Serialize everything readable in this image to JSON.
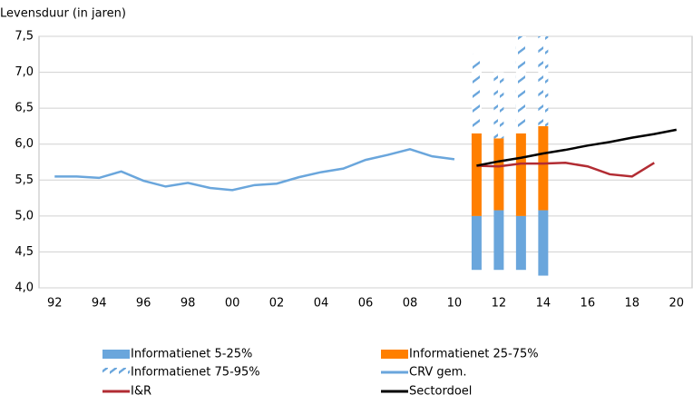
{
  "chart_data": {
    "type": "bar",
    "ylabel": "Levensduur (in jaren)",
    "categories": [
      "92",
      null,
      "94",
      null,
      "96",
      null,
      "98",
      null,
      "00",
      null,
      "02",
      null,
      "04",
      null,
      "06",
      null,
      "08",
      null,
      "10",
      null,
      "12",
      null,
      "14",
      null,
      "16",
      null,
      "18",
      null,
      "20"
    ],
    "ylim": [
      4.0,
      7.5
    ],
    "yticks": [
      {
        "value": 4.0,
        "label": "4,0"
      },
      {
        "value": 4.5,
        "label": "4,5"
      },
      {
        "value": 5.0,
        "label": "5,0"
      },
      {
        "value": 5.5,
        "label": "5,5"
      },
      {
        "value": 6.0,
        "label": "6,0"
      },
      {
        "value": 6.5,
        "label": "6,5"
      },
      {
        "value": 7.0,
        "label": "7,0"
      },
      {
        "value": 7.5,
        "label": "7,5"
      }
    ],
    "grid": true,
    "bar_base": [
      null,
      null,
      null,
      null,
      null,
      null,
      null,
      null,
      null,
      null,
      null,
      null,
      null,
      null,
      null,
      null,
      null,
      null,
      null,
      4.25,
      4.25,
      4.25,
      4.17,
      null,
      null,
      null,
      null,
      null,
      null
    ],
    "series": [
      {
        "name": "Informatienet 5-25%",
        "type": "bar",
        "color": "#6aa6dc",
        "values": [
          null,
          null,
          null,
          null,
          null,
          null,
          null,
          null,
          null,
          null,
          null,
          null,
          null,
          null,
          null,
          null,
          null,
          null,
          null,
          0.75,
          0.83,
          0.75,
          0.91,
          null,
          null,
          null,
          null,
          null,
          null
        ]
      },
      {
        "name": "Informatienet 25-75%",
        "type": "bar",
        "color": "#ff7f00",
        "values": [
          null,
          null,
          null,
          null,
          null,
          null,
          null,
          null,
          null,
          null,
          null,
          null,
          null,
          null,
          null,
          null,
          null,
          null,
          null,
          1.15,
          1.0,
          1.15,
          1.17,
          null,
          null,
          null,
          null,
          null,
          null
        ]
      },
      {
        "name": "Informatienet 75-95%",
        "type": "bar",
        "color": "#9cc8ec",
        "hatch": true,
        "values": [
          null,
          null,
          null,
          null,
          null,
          null,
          null,
          null,
          null,
          null,
          null,
          null,
          null,
          null,
          null,
          null,
          null,
          null,
          null,
          1.1,
          0.92,
          1.35,
          1.25,
          null,
          null,
          null,
          null,
          null,
          null
        ]
      },
      {
        "name": "CRV gem.",
        "type": "line",
        "color": "#6aa6dc",
        "values": [
          5.55,
          5.55,
          5.53,
          5.62,
          5.49,
          5.41,
          5.46,
          5.39,
          5.36,
          5.43,
          5.45,
          5.54,
          5.61,
          5.66,
          5.78,
          5.85,
          5.93,
          5.83,
          5.79,
          null,
          null,
          null,
          null,
          null,
          null,
          null,
          null,
          null,
          null
        ]
      },
      {
        "name": "I&R",
        "type": "line",
        "color": "#b22c33",
        "values": [
          null,
          null,
          null,
          null,
          null,
          null,
          null,
          null,
          null,
          null,
          null,
          null,
          null,
          null,
          null,
          null,
          null,
          null,
          null,
          5.7,
          5.69,
          5.73,
          5.73,
          5.74,
          5.69,
          5.58,
          5.55,
          5.74,
          null
        ]
      },
      {
        "name": "Sectordoel",
        "type": "line",
        "color": "#000000",
        "values": [
          null,
          null,
          null,
          null,
          null,
          null,
          null,
          null,
          null,
          null,
          null,
          null,
          null,
          null,
          null,
          null,
          null,
          null,
          null,
          5.7,
          5.76,
          5.81,
          5.87,
          5.92,
          5.98,
          6.03,
          6.09,
          6.14,
          6.2
        ]
      }
    ]
  }
}
